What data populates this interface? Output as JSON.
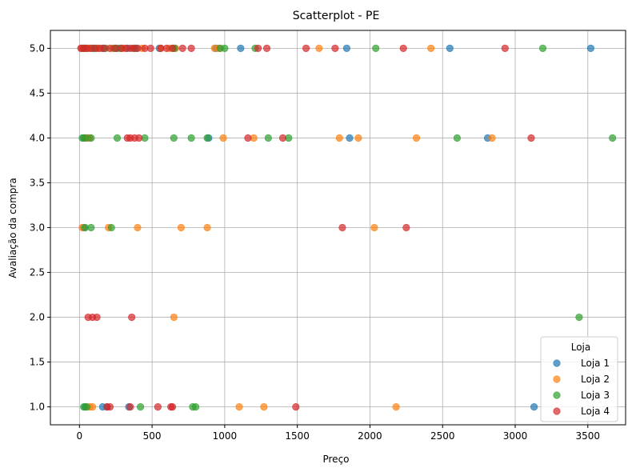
{
  "chart_data": {
    "type": "scatter",
    "title": "Scatterplot - PE",
    "xlabel": "Preço",
    "ylabel": "Avaliação da compra",
    "xlim": [
      -200,
      3760
    ],
    "ylim": [
      0.8,
      5.2
    ],
    "xticks": [
      0,
      500,
      1000,
      1500,
      2000,
      2500,
      3000,
      3500
    ],
    "yticks": [
      1.0,
      1.5,
      2.0,
      2.5,
      3.0,
      3.5,
      4.0,
      4.5,
      5.0
    ],
    "xtick_labels": [
      "0",
      "500",
      "1000",
      "1500",
      "2000",
      "2500",
      "3000",
      "3500"
    ],
    "ytick_labels": [
      "1.0",
      "1.5",
      "2.0",
      "2.5",
      "3.0",
      "3.5",
      "4.0",
      "4.5",
      "5.0"
    ],
    "grid": true,
    "legend_title": "Loja",
    "legend_position": "lower-right",
    "series": [
      {
        "name": "Loja 1",
        "color": "#1f77b4",
        "points": [
          [
            20,
            5
          ],
          [
            40,
            5
          ],
          [
            60,
            5
          ],
          [
            90,
            5
          ],
          [
            120,
            5
          ],
          [
            160,
            5
          ],
          [
            260,
            5
          ],
          [
            330,
            5
          ],
          [
            390,
            5
          ],
          [
            550,
            5
          ],
          [
            660,
            5
          ],
          [
            940,
            5
          ],
          [
            1110,
            5
          ],
          [
            1840,
            5
          ],
          [
            2550,
            5
          ],
          [
            3520,
            5
          ],
          [
            30,
            4
          ],
          [
            60,
            4
          ],
          [
            890,
            4
          ],
          [
            1860,
            4
          ],
          [
            2810,
            4
          ],
          [
            30,
            3
          ],
          [
            40,
            1
          ],
          [
            160,
            1
          ],
          [
            190,
            1
          ],
          [
            340,
            1
          ],
          [
            3130,
            1
          ]
        ]
      },
      {
        "name": "Loja 2",
        "color": "#ff7f0e",
        "points": [
          [
            15,
            5
          ],
          [
            45,
            5
          ],
          [
            70,
            5
          ],
          [
            130,
            5
          ],
          [
            230,
            5
          ],
          [
            300,
            5
          ],
          [
            430,
            5
          ],
          [
            560,
            5
          ],
          [
            620,
            5
          ],
          [
            660,
            5
          ],
          [
            930,
            5
          ],
          [
            960,
            5
          ],
          [
            1650,
            5
          ],
          [
            2420,
            5
          ],
          [
            40,
            4
          ],
          [
            70,
            4
          ],
          [
            990,
            4
          ],
          [
            1200,
            4
          ],
          [
            1790,
            4
          ],
          [
            1920,
            4
          ],
          [
            2320,
            4
          ],
          [
            2840,
            4
          ],
          [
            20,
            3
          ],
          [
            200,
            3
          ],
          [
            400,
            3
          ],
          [
            700,
            3
          ],
          [
            880,
            3
          ],
          [
            2030,
            3
          ],
          [
            650,
            2
          ],
          [
            70,
            1
          ],
          [
            90,
            1
          ],
          [
            1100,
            1
          ],
          [
            1270,
            1
          ],
          [
            2180,
            1
          ]
        ]
      },
      {
        "name": "Loja 3",
        "color": "#2ca02c",
        "points": [
          [
            30,
            5
          ],
          [
            100,
            5
          ],
          [
            180,
            5
          ],
          [
            240,
            5
          ],
          [
            280,
            5
          ],
          [
            380,
            5
          ],
          [
            650,
            5
          ],
          [
            970,
            5
          ],
          [
            1000,
            5
          ],
          [
            1210,
            5
          ],
          [
            2040,
            5
          ],
          [
            3190,
            5
          ],
          [
            20,
            4
          ],
          [
            40,
            4
          ],
          [
            80,
            4
          ],
          [
            260,
            4
          ],
          [
            450,
            4
          ],
          [
            650,
            4
          ],
          [
            770,
            4
          ],
          [
            880,
            4
          ],
          [
            1300,
            4
          ],
          [
            1440,
            4
          ],
          [
            2600,
            4
          ],
          [
            3670,
            4
          ],
          [
            40,
            3
          ],
          [
            80,
            3
          ],
          [
            220,
            3
          ],
          [
            3440,
            2
          ],
          [
            30,
            1
          ],
          [
            50,
            1
          ],
          [
            420,
            1
          ],
          [
            780,
            1
          ],
          [
            800,
            1
          ]
        ]
      },
      {
        "name": "Loja 4",
        "color": "#d62728",
        "points": [
          [
            10,
            5
          ],
          [
            30,
            5
          ],
          [
            50,
            5
          ],
          [
            80,
            5
          ],
          [
            110,
            5
          ],
          [
            140,
            5
          ],
          [
            170,
            5
          ],
          [
            210,
            5
          ],
          [
            250,
            5
          ],
          [
            290,
            5
          ],
          [
            320,
            5
          ],
          [
            350,
            5
          ],
          [
            370,
            5
          ],
          [
            400,
            5
          ],
          [
            450,
            5
          ],
          [
            490,
            5
          ],
          [
            560,
            5
          ],
          [
            600,
            5
          ],
          [
            640,
            5
          ],
          [
            710,
            5
          ],
          [
            770,
            5
          ],
          [
            1230,
            5
          ],
          [
            1290,
            5
          ],
          [
            1560,
            5
          ],
          [
            1760,
            5
          ],
          [
            2230,
            5
          ],
          [
            2930,
            5
          ],
          [
            330,
            4
          ],
          [
            350,
            4
          ],
          [
            380,
            4
          ],
          [
            410,
            4
          ],
          [
            1160,
            4
          ],
          [
            1400,
            4
          ],
          [
            3110,
            4
          ],
          [
            1810,
            3
          ],
          [
            2250,
            3
          ],
          [
            60,
            2
          ],
          [
            90,
            2
          ],
          [
            120,
            2
          ],
          [
            360,
            2
          ],
          [
            190,
            1
          ],
          [
            210,
            1
          ],
          [
            350,
            1
          ],
          [
            540,
            1
          ],
          [
            630,
            1
          ],
          [
            640,
            1
          ],
          [
            1490,
            1
          ]
        ]
      }
    ]
  }
}
